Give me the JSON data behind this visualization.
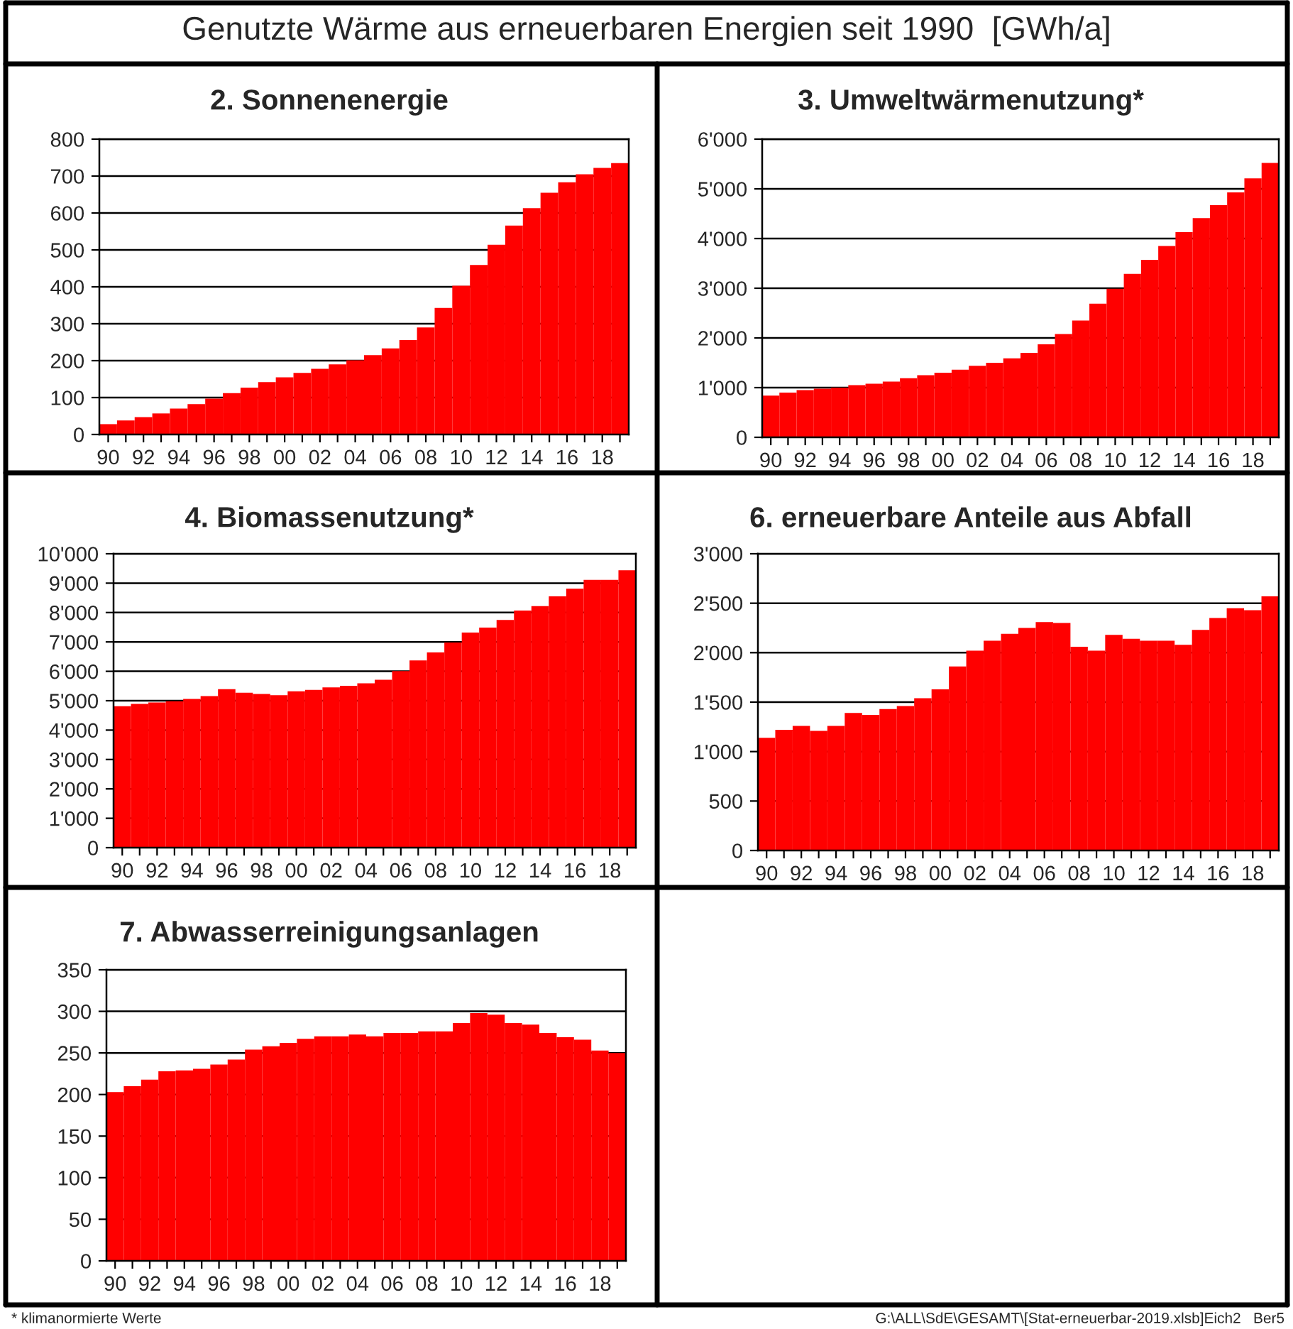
{
  "chart_data": [
    {
      "type": "bar",
      "title": "2. Sonnenenergie",
      "color": "#ff0000",
      "grid": "y",
      "categories": [
        "90",
        null,
        "92",
        null,
        "94",
        null,
        "96",
        null,
        "98",
        null,
        "00",
        null,
        "02",
        null,
        "04",
        null,
        "06",
        null,
        "08",
        null,
        "10",
        null,
        "12",
        null,
        "14",
        null,
        "16",
        null,
        "18",
        null
      ],
      "values": [
        28,
        38,
        47,
        57,
        70,
        82,
        97,
        112,
        127,
        142,
        155,
        167,
        178,
        190,
        201,
        215,
        233,
        256,
        290,
        343,
        403,
        459,
        514,
        566,
        613,
        655,
        683,
        705,
        722,
        735
      ],
      "ylim": [
        0,
        800
      ],
      "yticks": [
        0,
        100,
        200,
        300,
        400,
        500,
        600,
        700,
        800
      ]
    },
    {
      "type": "bar",
      "title": "3. Umweltwärmenutzung*",
      "color": "#ff0000",
      "grid": "y",
      "categories": [
        "90",
        null,
        "92",
        null,
        "94",
        null,
        "96",
        null,
        "98",
        null,
        "00",
        null,
        "02",
        null,
        "04",
        null,
        "06",
        null,
        "08",
        null,
        "10",
        null,
        "12",
        null,
        "14",
        null,
        "16",
        null,
        "18",
        null
      ],
      "values": [
        840,
        900,
        950,
        980,
        1000,
        1050,
        1080,
        1120,
        1190,
        1250,
        1300,
        1360,
        1440,
        1500,
        1590,
        1700,
        1870,
        2080,
        2350,
        2690,
        2990,
        3290,
        3570,
        3850,
        4130,
        4410,
        4670,
        4930,
        5210,
        5520
      ],
      "ylim": [
        0,
        6000
      ],
      "yticks": [
        0,
        {
          "value": 1000,
          "label": "1'000"
        },
        {
          "value": 2000,
          "label": "2'000"
        },
        {
          "value": 3000,
          "label": "3'000"
        },
        {
          "value": 4000,
          "label": "4'000"
        },
        {
          "value": 5000,
          "label": "5'000"
        },
        {
          "value": 6000,
          "label": "6'000"
        }
      ]
    },
    {
      "type": "bar",
      "title": "4. Biomassenutzung*",
      "color": "#ff0000",
      "grid": "y",
      "categories": [
        "90",
        null,
        "92",
        null,
        "94",
        null,
        "96",
        null,
        "98",
        null,
        "00",
        null,
        "02",
        null,
        "04",
        null,
        "06",
        null,
        "08",
        null,
        "10",
        null,
        "12",
        null,
        "14",
        null,
        "16",
        null,
        "18",
        null
      ],
      "values": [
        4810,
        4890,
        4940,
        4980,
        5060,
        5160,
        5390,
        5270,
        5230,
        5190,
        5320,
        5370,
        5450,
        5510,
        5590,
        5710,
        6010,
        6370,
        6640,
        6980,
        7320,
        7490,
        7750,
        8070,
        8220,
        8550,
        8810,
        9110,
        9110,
        9440
      ],
      "ylim": [
        0,
        10000
      ],
      "yticks": [
        0,
        {
          "value": 1000,
          "label": "1'000"
        },
        {
          "value": 2000,
          "label": "2'000"
        },
        {
          "value": 3000,
          "label": "3'000"
        },
        {
          "value": 4000,
          "label": "4'000"
        },
        {
          "value": 5000,
          "label": "5'000"
        },
        {
          "value": 6000,
          "label": "6'000"
        },
        {
          "value": 7000,
          "label": "7'000"
        },
        {
          "value": 8000,
          "label": "8'000"
        },
        {
          "value": 9000,
          "label": "9'000"
        },
        {
          "value": 10000,
          "label": "10'000"
        }
      ]
    },
    {
      "type": "bar",
      "title": "6. erneuerbare Anteile aus Abfall",
      "color": "#ff0000",
      "grid": "y",
      "categories": [
        "90",
        null,
        "92",
        null,
        "94",
        null,
        "96",
        null,
        "98",
        null,
        "00",
        null,
        "02",
        null,
        "04",
        null,
        "06",
        null,
        "08",
        null,
        "10",
        null,
        "12",
        null,
        "14",
        null,
        "16",
        null,
        "18",
        null
      ],
      "values": [
        1140,
        1220,
        1260,
        1210,
        1260,
        1390,
        1370,
        1430,
        1460,
        1540,
        1630,
        1860,
        2020,
        2120,
        2190,
        2250,
        2310,
        2300,
        2060,
        2020,
        2180,
        2140,
        2120,
        2120,
        2080,
        2230,
        2350,
        2450,
        2430,
        2570
      ],
      "ylim": [
        0,
        3000
      ],
      "yticks": [
        0,
        500,
        {
          "value": 1000,
          "label": "1'000"
        },
        {
          "value": 1500,
          "label": "1'500"
        },
        {
          "value": 2000,
          "label": "2'000"
        },
        {
          "value": 2500,
          "label": "2'500"
        },
        {
          "value": 3000,
          "label": "3'000"
        }
      ]
    },
    {
      "type": "bar",
      "title": "7. Abwasserreinigungsanlagen",
      "color": "#ff0000",
      "grid": "y",
      "categories": [
        "90",
        null,
        "92",
        null,
        "94",
        null,
        "96",
        null,
        "98",
        null,
        "00",
        null,
        "02",
        null,
        "04",
        null,
        "06",
        null,
        "08",
        null,
        "10",
        null,
        "12",
        null,
        "14",
        null,
        "16",
        null,
        "18",
        null
      ],
      "values": [
        203,
        210,
        218,
        228,
        229,
        231,
        236,
        242,
        254,
        258,
        262,
        267,
        270,
        270,
        272,
        270,
        274,
        274,
        276,
        276,
        286,
        298,
        296,
        286,
        284,
        274,
        269,
        266,
        253,
        250
      ],
      "ylim": [
        0,
        350
      ],
      "yticks": [
        0,
        50,
        100,
        150,
        200,
        250,
        300,
        350
      ]
    },
    {
      "type": "other",
      "title": "Genutzte Wärme aus erneuerbaren Energien seit 1990  [GWh/a]",
      "annotations": [
        "* klimanormierte Werte",
        "G:\\ALL\\SdE\\GESAMT\\[Stat-erneuerbar-2019.xlsb]Eich2   Ber5"
      ]
    }
  ]
}
